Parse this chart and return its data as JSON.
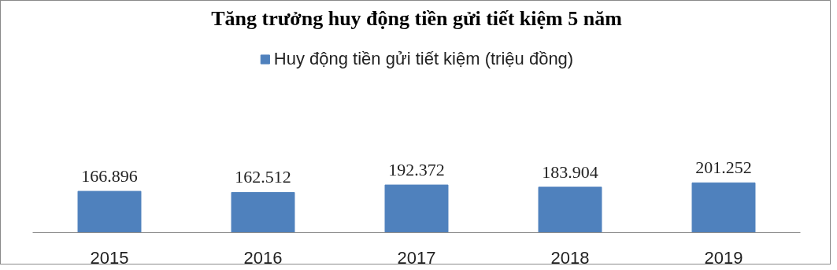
{
  "chart_data": {
    "type": "bar",
    "title": "Tăng trưởng huy động tiền gửi tiết kiệm 5 năm",
    "categories": [
      "2015",
      "2016",
      "2017",
      "2018",
      "2019"
    ],
    "series": [
      {
        "name": "Huy động tiền gửi tiết kiệm (triệu đồng)",
        "color": "#4f81bd",
        "values": [
          166896,
          162512,
          192372,
          183904,
          201252
        ],
        "value_labels": [
          "166.896",
          "162.512",
          "192.372",
          "183.904",
          "201.252"
        ]
      }
    ],
    "legend": "top",
    "grid": false,
    "tick_labels": "x"
  }
}
